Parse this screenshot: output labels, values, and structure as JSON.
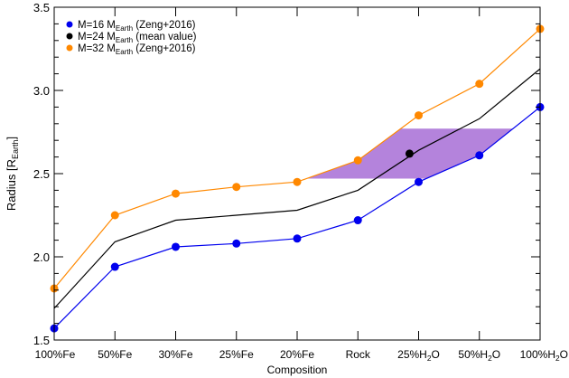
{
  "chart_data": {
    "type": "line",
    "title": "",
    "xlabel": "Composition",
    "ylabel": {
      "main": "Radius [R",
      "sub": "Earth",
      "end": "]"
    },
    "categories": [
      {
        "main": "100%Fe",
        "sub": "",
        "end": ""
      },
      {
        "main": "50%Fe",
        "sub": "",
        "end": ""
      },
      {
        "main": "30%Fe",
        "sub": "",
        "end": ""
      },
      {
        "main": "25%Fe",
        "sub": "",
        "end": ""
      },
      {
        "main": "20%Fe",
        "sub": "",
        "end": ""
      },
      {
        "main": "Rock",
        "sub": "",
        "end": ""
      },
      {
        "main": "25%H",
        "sub": "2",
        "end": "O"
      },
      {
        "main": "50%H",
        "sub": "2",
        "end": "O"
      },
      {
        "main": "100%H",
        "sub": "2",
        "end": "O"
      }
    ],
    "ylim": [
      1.5,
      3.5
    ],
    "yticks": [
      1.5,
      2.0,
      2.5,
      3.0,
      3.5
    ],
    "ytick_labels": [
      "1.5",
      "2.0",
      "2.5",
      "3.0",
      "3.5"
    ],
    "grid": false,
    "legend_position": "top-left",
    "series": [
      {
        "legend": {
          "main": "M=16 M",
          "sub": "Earth",
          "end": " (Zeng+2016)"
        },
        "color": "#0000ee",
        "markers": true,
        "values": [
          1.57,
          1.94,
          2.06,
          2.08,
          2.11,
          2.22,
          2.45,
          2.61,
          2.9
        ]
      },
      {
        "legend": {
          "main": "M=24 M",
          "sub": "Earth",
          "end": " (mean value)"
        },
        "color": "#000000",
        "markers": false,
        "values": [
          1.69,
          2.09,
          2.22,
          2.25,
          2.28,
          2.4,
          2.64,
          2.83,
          3.13
        ]
      },
      {
        "legend": {
          "main": "M=32 M",
          "sub": "Earth",
          "end": " (Zeng+2016)"
        },
        "color": "#ff8800",
        "markers": true,
        "values": [
          1.81,
          2.25,
          2.38,
          2.42,
          2.45,
          2.58,
          2.85,
          3.04,
          3.37
        ]
      }
    ],
    "highlight_point": {
      "x_index": 5.85,
      "y": 2.62,
      "color": "#000000"
    },
    "shaded_region": {
      "color": "#9b59d0",
      "y_range": [
        2.47,
        2.77
      ]
    }
  }
}
